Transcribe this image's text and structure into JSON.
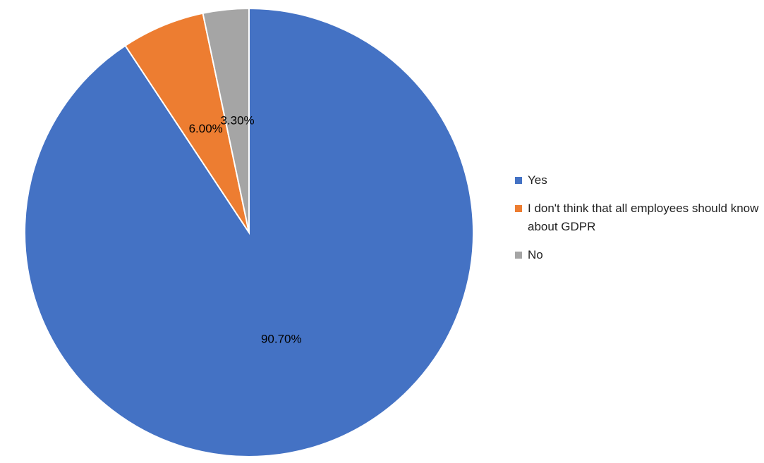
{
  "chart_data": {
    "type": "pie",
    "categories": [
      "Yes",
      "I don't think that all employees should know about GDPR",
      "No"
    ],
    "values": [
      90.7,
      6.0,
      3.3
    ],
    "value_labels": [
      "90.70%",
      "6.00%",
      "3.30%"
    ],
    "colors": [
      "#4472c4",
      "#ed7d31",
      "#a5a5a5"
    ],
    "legend": "right"
  }
}
